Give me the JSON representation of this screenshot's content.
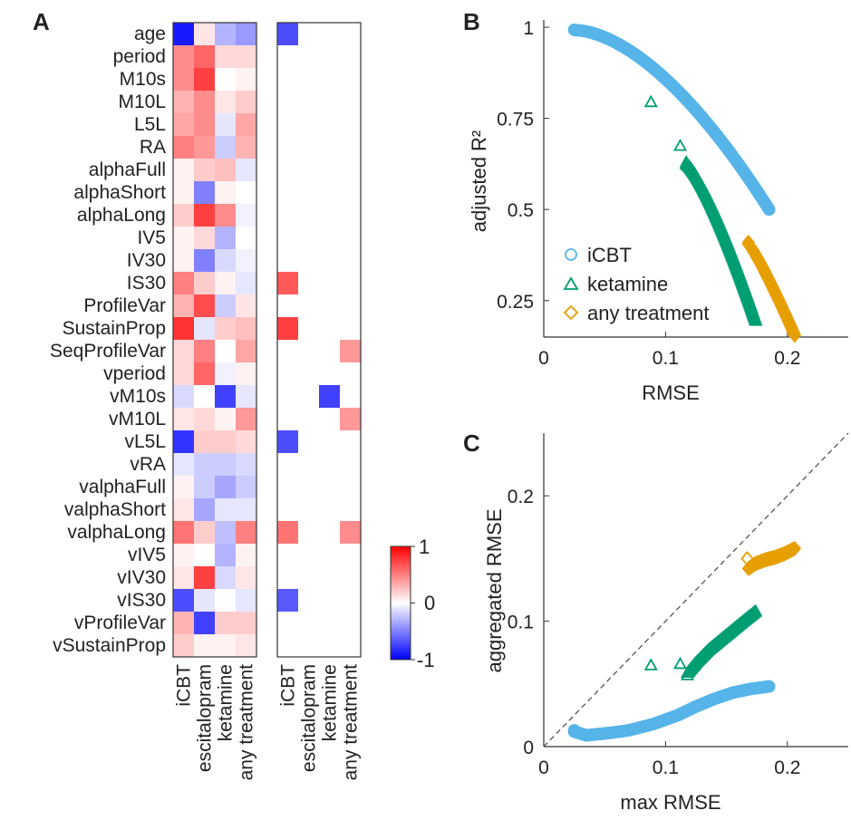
{
  "chart_data": [
    {
      "panel": "A",
      "type": "heatmap",
      "panel_label": "A",
      "rows": [
        "age",
        "period",
        "M10s",
        "M10L",
        "L5L",
        "RA",
        "alphaFull",
        "alphaShort",
        "alphaLong",
        "IV5",
        "IV30",
        "IS30",
        "ProfileVar",
        "SustainProp",
        "SeqProfileVar",
        "vperiod",
        "vM10s",
        "vM10L",
        "vL5L",
        "vRA",
        "valphaFull",
        "valphaShort",
        "valphaLong",
        "vIV5",
        "vIV30",
        "vIS30",
        "vProfileVar",
        "vSustainProp"
      ],
      "columns": [
        "iCBT",
        "escitalopram",
        "ketamine",
        "any treatment"
      ],
      "left_matrix": [
        [
          -0.9,
          0.1,
          -0.3,
          -0.4
        ],
        [
          0.45,
          0.6,
          0.15,
          0.15
        ],
        [
          0.45,
          0.75,
          0.0,
          0.05
        ],
        [
          0.3,
          0.45,
          0.1,
          0.2
        ],
        [
          0.35,
          0.45,
          -0.1,
          0.35
        ],
        [
          0.5,
          0.4,
          -0.2,
          0.3
        ],
        [
          0.05,
          0.2,
          0.25,
          -0.1
        ],
        [
          0.05,
          -0.5,
          0.05,
          0.0
        ],
        [
          0.2,
          0.75,
          0.45,
          -0.05
        ],
        [
          0.05,
          0.15,
          -0.3,
          0.0
        ],
        [
          0.05,
          -0.5,
          -0.15,
          -0.05
        ],
        [
          0.5,
          0.2,
          0.05,
          -0.1
        ],
        [
          0.3,
          0.7,
          -0.2,
          0.1
        ],
        [
          0.8,
          -0.1,
          0.2,
          0.25
        ],
        [
          0.15,
          0.5,
          0.0,
          0.35
        ],
        [
          0.15,
          0.6,
          -0.05,
          0.05
        ],
        [
          -0.15,
          0.0,
          -0.75,
          -0.1
        ],
        [
          0.1,
          0.15,
          0.05,
          0.4
        ],
        [
          -0.8,
          0.2,
          0.2,
          0.15
        ],
        [
          -0.1,
          -0.2,
          -0.2,
          -0.15
        ],
        [
          0.05,
          -0.2,
          -0.35,
          -0.2
        ],
        [
          0.1,
          -0.35,
          -0.1,
          -0.1
        ],
        [
          0.55,
          0.2,
          -0.25,
          0.5
        ],
        [
          0.05,
          0.0,
          -0.3,
          0.05
        ],
        [
          0.1,
          0.75,
          -0.15,
          0.1
        ],
        [
          -0.7,
          -0.1,
          0.0,
          -0.1
        ],
        [
          0.3,
          -0.75,
          0.2,
          0.2
        ],
        [
          0.2,
          0.05,
          0.05,
          0.1
        ]
      ],
      "right_matrix": [
        [
          -0.7,
          0,
          0,
          0
        ],
        [
          0,
          0,
          0,
          0
        ],
        [
          0,
          0,
          0,
          0
        ],
        [
          0,
          0,
          0,
          0
        ],
        [
          0,
          0,
          0,
          0
        ],
        [
          0,
          0,
          0,
          0
        ],
        [
          0,
          0,
          0,
          0
        ],
        [
          0,
          0,
          0,
          0
        ],
        [
          0,
          0,
          0,
          0
        ],
        [
          0,
          0,
          0,
          0
        ],
        [
          0,
          0,
          0,
          0
        ],
        [
          0.65,
          0,
          0,
          0
        ],
        [
          0,
          0,
          0,
          0
        ],
        [
          0.75,
          0,
          0,
          0
        ],
        [
          0,
          0,
          0,
          0.4
        ],
        [
          0,
          0,
          0,
          0
        ],
        [
          0,
          0,
          -0.75,
          0
        ],
        [
          0,
          0,
          0,
          0.4
        ],
        [
          -0.7,
          0,
          0,
          0
        ],
        [
          0,
          0,
          0,
          0
        ],
        [
          0,
          0,
          0,
          0
        ],
        [
          0,
          0,
          0,
          0
        ],
        [
          0.55,
          0,
          0,
          0.45
        ],
        [
          0,
          0,
          0,
          0
        ],
        [
          0,
          0,
          0,
          0
        ],
        [
          -0.65,
          0,
          0,
          0
        ],
        [
          0,
          0,
          0,
          0
        ],
        [
          0,
          0,
          0,
          0
        ]
      ],
      "colorbar": {
        "min": -1,
        "max": 1,
        "ticks": [
          "1",
          "0",
          "-1"
        ]
      }
    },
    {
      "panel": "B",
      "type": "scatter",
      "panel_label": "B",
      "xlabel": "RMSE",
      "ylabel": "adjusted R²",
      "xlim": [
        0,
        0.25
      ],
      "ylim": [
        0.15,
        1.02
      ],
      "xticks": [
        "0",
        "0.1",
        "0.2"
      ],
      "xtick_values": [
        0,
        0.1,
        0.2
      ],
      "yticks": [
        "0.25",
        "0.5",
        "0.75",
        "1"
      ],
      "ytick_values": [
        0.25,
        0.5,
        0.75,
        1
      ],
      "legend_position": "bottom-left",
      "series": [
        {
          "name": "iCBT",
          "marker": "circle",
          "color": "#56B4E9",
          "outline_x": [
            0.025
          ],
          "outline_y": [
            0.993
          ],
          "curve": {
            "x0": 0.026,
            "x1": 0.185,
            "y0": 0.992,
            "y1": 0.5,
            "shape": 1.7
          }
        },
        {
          "name": "ketamine",
          "marker": "triangle",
          "color": "#009E73",
          "outline_x": [
            0.088,
            0.112,
            0.117
          ],
          "outline_y": [
            0.795,
            0.675,
            0.63
          ],
          "curve": {
            "x0": 0.117,
            "x1": 0.174,
            "y0": 0.625,
            "y1": 0.195,
            "shape": 1.3
          }
        },
        {
          "name": "any treatment",
          "marker": "diamond",
          "color": "#E69F00",
          "outline_x": [
            0.168
          ],
          "outline_y": [
            0.41
          ],
          "curve": {
            "x0": 0.168,
            "x1": 0.206,
            "y0": 0.405,
            "y1": 0.155,
            "shape": 1.15
          }
        }
      ]
    },
    {
      "panel": "C",
      "type": "scatter",
      "panel_label": "C",
      "xlabel": "max RMSE",
      "ylabel": "aggregated RMSE",
      "xlim": [
        0,
        0.25
      ],
      "ylim": [
        0,
        0.25
      ],
      "xticks": [
        "0",
        "0.1",
        "0.2"
      ],
      "xtick_values": [
        0,
        0.1,
        0.2
      ],
      "yticks": [
        "0",
        "0.1",
        "0.2"
      ],
      "ytick_values": [
        0,
        0.1,
        0.2
      ],
      "diagonal": true,
      "series": [
        {
          "name": "iCBT",
          "marker": "circle",
          "color": "#56B4E9",
          "outline_x": [
            0.025
          ],
          "outline_y": [
            0.013
          ],
          "path_x": [
            0.025,
            0.035,
            0.045,
            0.055,
            0.07,
            0.09,
            0.11,
            0.125,
            0.14,
            0.155,
            0.17,
            0.185
          ],
          "path_y": [
            0.012,
            0.009,
            0.01,
            0.011,
            0.013,
            0.018,
            0.025,
            0.032,
            0.038,
            0.043,
            0.046,
            0.048
          ]
        },
        {
          "name": "ketamine",
          "marker": "triangle",
          "color": "#009E73",
          "outline_x": [
            0.088,
            0.112,
            0.118
          ],
          "outline_y": [
            0.065,
            0.066,
            0.057
          ],
          "path_x": [
            0.118,
            0.125,
            0.135,
            0.145,
            0.155,
            0.165,
            0.174
          ],
          "path_y": [
            0.059,
            0.067,
            0.077,
            0.085,
            0.093,
            0.101,
            0.108
          ]
        },
        {
          "name": "any treatment",
          "marker": "diamond",
          "color": "#E69F00",
          "outline_x": [
            0.167
          ],
          "outline_y": [
            0.15
          ],
          "path_x": [
            0.168,
            0.174,
            0.182,
            0.19,
            0.198,
            0.206
          ],
          "path_y": [
            0.142,
            0.146,
            0.149,
            0.151,
            0.154,
            0.158
          ]
        }
      ]
    }
  ]
}
